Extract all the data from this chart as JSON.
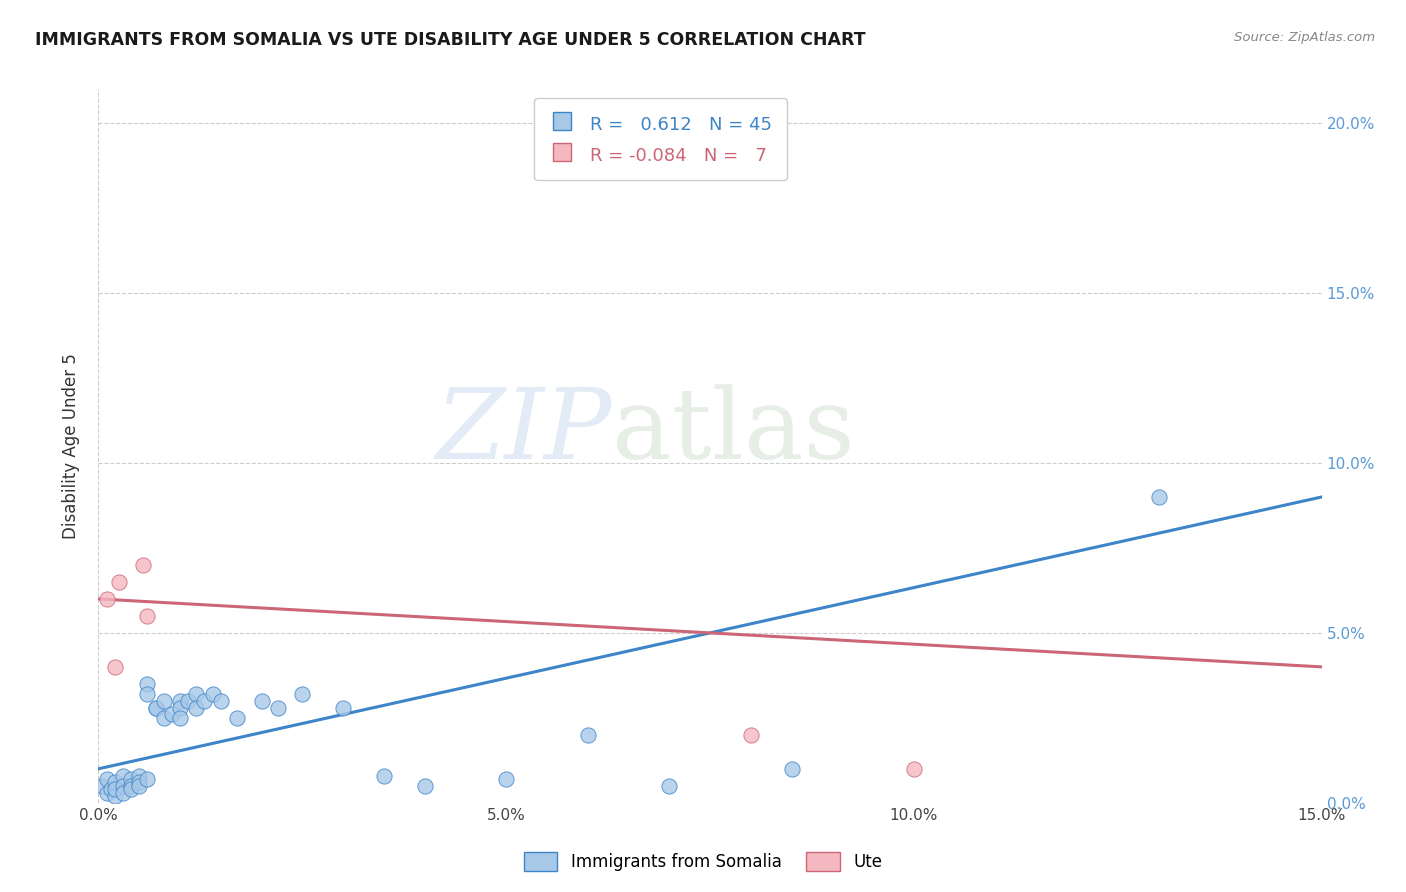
{
  "title": "IMMIGRANTS FROM SOMALIA VS UTE DISABILITY AGE UNDER 5 CORRELATION CHART",
  "source": "Source: ZipAtlas.com",
  "ylabel": "Disability Age Under 5",
  "xlim": [
    0,
    0.15
  ],
  "ylim": [
    0,
    0.21
  ],
  "xticks": [
    0.0,
    0.05,
    0.1,
    0.15
  ],
  "yticks": [
    0.0,
    0.05,
    0.1,
    0.15,
    0.2
  ],
  "blue_R": 0.612,
  "blue_N": 45,
  "pink_R": -0.084,
  "pink_N": 7,
  "blue_color": "#a8c8e8",
  "pink_color": "#f4b8c0",
  "blue_line_color": "#3d85c8",
  "pink_line_color": "#cc6677",
  "blue_scatter": [
    [
      0.0005,
      0.005
    ],
    [
      0.001,
      0.003
    ],
    [
      0.001,
      0.007
    ],
    [
      0.0015,
      0.004
    ],
    [
      0.002,
      0.002
    ],
    [
      0.002,
      0.006
    ],
    [
      0.002,
      0.004
    ],
    [
      0.003,
      0.008
    ],
    [
      0.003,
      0.005
    ],
    [
      0.003,
      0.003
    ],
    [
      0.004,
      0.007
    ],
    [
      0.004,
      0.005
    ],
    [
      0.004,
      0.004
    ],
    [
      0.005,
      0.008
    ],
    [
      0.005,
      0.006
    ],
    [
      0.005,
      0.005
    ],
    [
      0.006,
      0.007
    ],
    [
      0.006,
      0.035
    ],
    [
      0.006,
      0.032
    ],
    [
      0.007,
      0.028
    ],
    [
      0.007,
      0.028
    ],
    [
      0.008,
      0.025
    ],
    [
      0.008,
      0.03
    ],
    [
      0.009,
      0.026
    ],
    [
      0.01,
      0.03
    ],
    [
      0.01,
      0.028
    ],
    [
      0.01,
      0.025
    ],
    [
      0.011,
      0.03
    ],
    [
      0.012,
      0.032
    ],
    [
      0.012,
      0.028
    ],
    [
      0.013,
      0.03
    ],
    [
      0.014,
      0.032
    ],
    [
      0.015,
      0.03
    ],
    [
      0.017,
      0.025
    ],
    [
      0.02,
      0.03
    ],
    [
      0.022,
      0.028
    ],
    [
      0.025,
      0.032
    ],
    [
      0.03,
      0.028
    ],
    [
      0.035,
      0.008
    ],
    [
      0.04,
      0.005
    ],
    [
      0.05,
      0.007
    ],
    [
      0.06,
      0.02
    ],
    [
      0.07,
      0.005
    ],
    [
      0.085,
      0.01
    ],
    [
      0.13,
      0.09
    ]
  ],
  "pink_scatter": [
    [
      0.001,
      0.06
    ],
    [
      0.002,
      0.04
    ],
    [
      0.0025,
      0.065
    ],
    [
      0.0055,
      0.07
    ],
    [
      0.006,
      0.055
    ],
    [
      0.08,
      0.02
    ],
    [
      0.1,
      0.01
    ]
  ],
  "watermark_zip": "ZIP",
  "watermark_atlas": "atlas",
  "legend_entries": [
    "Immigrants from Somalia",
    "Ute"
  ],
  "blue_trend_x": [
    0.0,
    0.15
  ],
  "blue_trend_y": [
    0.01,
    0.09
  ],
  "pink_trend_x": [
    0.0,
    0.15
  ],
  "pink_trend_y": [
    0.06,
    0.04
  ]
}
